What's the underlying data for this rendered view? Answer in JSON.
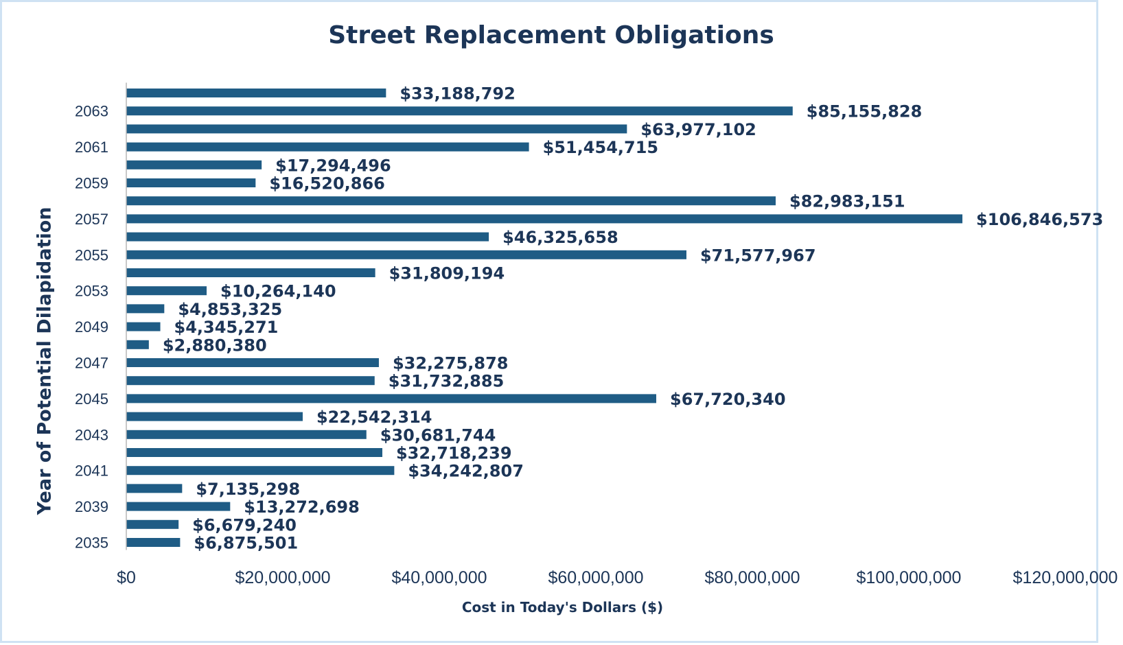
{
  "chart_data": {
    "type": "bar",
    "orientation": "horizontal",
    "title": "Street Replacement  Obligations",
    "xlabel": "Cost in Today's Dollars ($)",
    "ylabel": "Year of Potential Dilapidation",
    "xlim": [
      0,
      120000000
    ],
    "x_ticks": [
      0,
      20000000,
      40000000,
      60000000,
      80000000,
      100000000,
      120000000
    ],
    "x_tick_labels": [
      "$0",
      "$20,000,000",
      "$40,000,000",
      "$60,000,000",
      "$80,000,000",
      "$100,000,000",
      "$120,000,000"
    ],
    "grid": false,
    "legend": "none",
    "bar_color": "#1f5c85",
    "text_color": "#1c3557",
    "bars_bottom_to_top": [
      {
        "year_label": "2035",
        "value": 6875501,
        "label": "$6,875,501"
      },
      {
        "year_label": "",
        "value": 6679240,
        "label": "$6,679,240"
      },
      {
        "year_label": "2039",
        "value": 13272698,
        "label": "$13,272,698"
      },
      {
        "year_label": "",
        "value": 7135298,
        "label": "$7,135,298"
      },
      {
        "year_label": "2041",
        "value": 34242807,
        "label": "$34,242,807"
      },
      {
        "year_label": "",
        "value": 32718239,
        "label": "$32,718,239"
      },
      {
        "year_label": "2043",
        "value": 30681744,
        "label": "$30,681,744"
      },
      {
        "year_label": "",
        "value": 22542314,
        "label": "$22,542,314"
      },
      {
        "year_label": "2045",
        "value": 67720340,
        "label": "$67,720,340"
      },
      {
        "year_label": "",
        "value": 31732885,
        "label": "$31,732,885"
      },
      {
        "year_label": "2047",
        "value": 32275878,
        "label": "$32,275,878"
      },
      {
        "year_label": "",
        "value": 2880380,
        "label": "$2,880,380"
      },
      {
        "year_label": "2049",
        "value": 4345271,
        "label": "$4,345,271"
      },
      {
        "year_label": "",
        "value": 4853325,
        "label": "$4,853,325"
      },
      {
        "year_label": "2053",
        "value": 10264140,
        "label": "$10,264,140"
      },
      {
        "year_label": "",
        "value": 31809194,
        "label": "$31,809,194"
      },
      {
        "year_label": "2055",
        "value": 71577967,
        "label": "$71,577,967"
      },
      {
        "year_label": "",
        "value": 46325658,
        "label": "$46,325,658"
      },
      {
        "year_label": "2057",
        "value": 106846573,
        "label": "$106,846,573"
      },
      {
        "year_label": "",
        "value": 82983151,
        "label": "$82,983,151"
      },
      {
        "year_label": "2059",
        "value": 16520866,
        "label": "$16,520,866"
      },
      {
        "year_label": "",
        "value": 17294496,
        "label": "$17,294,496"
      },
      {
        "year_label": "2061",
        "value": 51454715,
        "label": "$51,454,715"
      },
      {
        "year_label": "",
        "value": 63977102,
        "label": "$63,977,102"
      },
      {
        "year_label": "2063",
        "value": 85155828,
        "label": "$85,155,828"
      },
      {
        "year_label": "",
        "value": 33188792,
        "label": "$33,188,792"
      }
    ]
  }
}
